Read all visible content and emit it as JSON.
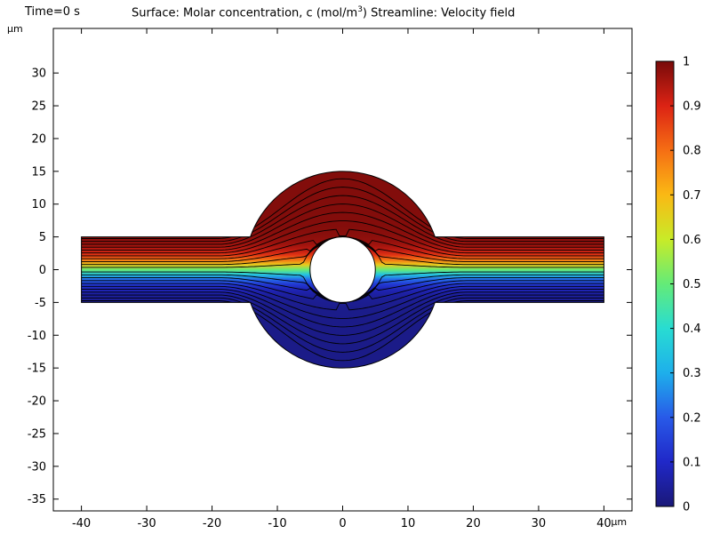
{
  "time_label": "Time=0 s",
  "title": {
    "prefix": "Surface: Molar concentration, c (mol/m",
    "sup": "3",
    "suffix": ")  Streamline: Velocity field"
  },
  "units": {
    "y": "µm",
    "x": "µm"
  },
  "chart_data": {
    "type": "heatmap",
    "colormap": "Rainbow",
    "xlim": [
      -44.3,
      44.3
    ],
    "ylim": [
      -36.8,
      36.8
    ],
    "xticks": [
      -40,
      -30,
      -20,
      -10,
      0,
      10,
      20,
      30,
      40
    ],
    "xtick_labels": [
      "-40",
      "-30",
      "-20",
      "-10",
      "0",
      "10",
      "20",
      "30",
      "40"
    ],
    "yticks": [
      30,
      25,
      20,
      15,
      10,
      5,
      0,
      -5,
      -10,
      -15,
      -20,
      -25,
      -30,
      -35
    ],
    "ytick_labels": [
      "30",
      "25",
      "20",
      "15",
      "10",
      "5",
      "0",
      "-5",
      "-10",
      "-15",
      "-20",
      "-25",
      "-30",
      "-35"
    ],
    "colorbar": {
      "min": 0,
      "max": 1,
      "ticks": [
        1,
        0.9,
        0.8,
        0.7,
        0.6,
        0.5,
        0.4,
        0.3,
        0.2,
        0.1,
        0
      ],
      "tick_labels": [
        "1",
        "0.9",
        "0.8",
        "0.7",
        "0.6",
        "0.5",
        "0.4",
        "0.3",
        "0.2",
        "0.1",
        "0"
      ]
    },
    "geometry": {
      "channel": {
        "x": [
          -40,
          40
        ],
        "y": [
          -5,
          5
        ]
      },
      "chamber_radius": 15,
      "obstacle_radius": 5
    },
    "streamline_count": 22
  }
}
